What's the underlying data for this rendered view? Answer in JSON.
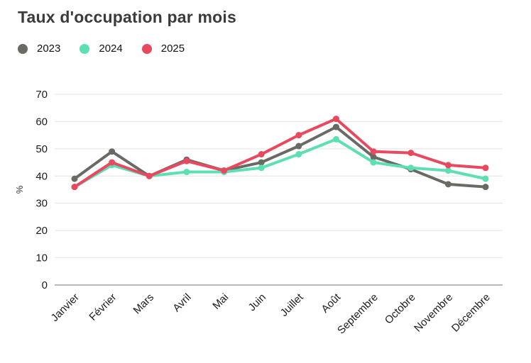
{
  "header": {
    "title": "Taux d'occupation par mois"
  },
  "legend": {
    "items": [
      {
        "label": "2023",
        "color": "#6a6a64"
      },
      {
        "label": "2024",
        "color": "#5cdfb2"
      },
      {
        "label": "2025",
        "color": "#e9495e"
      }
    ]
  },
  "chart_data": {
    "type": "line",
    "title": "Taux d'occupation par mois",
    "categories": [
      "Janvier",
      "Février",
      "Mars",
      "Avril",
      "Mai",
      "Juin",
      "Juillet",
      "Août",
      "Septembre",
      "Octobre",
      "Novembre",
      "Décembre"
    ],
    "series": [
      {
        "name": "2023",
        "color": "#6a6a64",
        "values": [
          39,
          49,
          40,
          46,
          42,
          45,
          51,
          58,
          47,
          42.5,
          37,
          36
        ]
      },
      {
        "name": "2024",
        "color": "#5cdfb2",
        "values": [
          36,
          44,
          40,
          41.5,
          41.5,
          43,
          48,
          53.5,
          45,
          43,
          42,
          39
        ]
      },
      {
        "name": "2025",
        "color": "#e9495e",
        "values": [
          36,
          45,
          40,
          45.5,
          42,
          48,
          55,
          61,
          49,
          48.5,
          44,
          43
        ]
      }
    ],
    "xlabel": "",
    "ylabel": "%",
    "ylim": [
      0,
      70
    ],
    "ytick_step": 10,
    "yticks": [
      0,
      10,
      20,
      30,
      40,
      50,
      60,
      70
    ],
    "grid": true,
    "legend_position": "top-left",
    "colors": {
      "gridline": "#e4e4e4",
      "zero_axis": "#8f8f8f",
      "tick_label": "#1c1c1c",
      "axis_title": "#333333",
      "title": "#3b3b3b"
    }
  }
}
